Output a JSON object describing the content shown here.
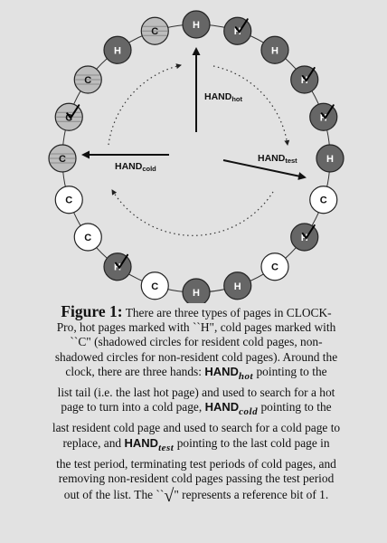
{
  "figure": {
    "labels": {
      "hand_hot_main": "HAND",
      "hand_hot_sub": "hot",
      "hand_cold_main": "HAND",
      "hand_cold_sub": "cold",
      "hand_test_main": "HAND",
      "hand_test_sub": "test"
    },
    "pages": [
      {
        "type": "H",
        "ref": false
      },
      {
        "type": "H",
        "ref": true
      },
      {
        "type": "H",
        "ref": false
      },
      {
        "type": "H",
        "ref": true
      },
      {
        "type": "H",
        "ref": true
      },
      {
        "type": "H",
        "ref": false
      },
      {
        "type": "C",
        "style": "nonresident",
        "ref": false
      },
      {
        "type": "H",
        "ref": true
      },
      {
        "type": "C",
        "style": "nonresident",
        "ref": false
      },
      {
        "type": "H",
        "ref": false
      },
      {
        "type": "H",
        "ref": false
      },
      {
        "type": "C",
        "style": "nonresident",
        "ref": false
      },
      {
        "type": "H",
        "ref": true
      },
      {
        "type": "C",
        "style": "nonresident",
        "ref": false
      },
      {
        "type": "C",
        "style": "nonresident",
        "ref": false
      },
      {
        "type": "C",
        "style": "resident",
        "ref": false
      },
      {
        "type": "C",
        "style": "resident",
        "ref": true
      },
      {
        "type": "C",
        "style": "resident",
        "ref": false
      },
      {
        "type": "H",
        "ref": false
      },
      {
        "type": "C",
        "style": "resident",
        "ref": false
      }
    ],
    "colors": {
      "hot_fill": "#666666",
      "cold_resident_fill": "#bdbdbd",
      "cold_nonresident_fill": "#ffffff",
      "background": "#e2e2e2"
    }
  },
  "caption": {
    "label": "Figure 1:",
    "l1": "There are three types of pages in CLOCK-",
    "l2": "Pro, hot pages marked with ``H\", cold pages marked with",
    "l3": "``C\" (shadowed circles for resident cold pages, non-",
    "l4": "shadowed circles for non-resident cold pages). Around the",
    "l5a": "clock, there are three hands:",
    "hand_hot": "HAND",
    "hot_sub": "hot",
    "l5b": "pointing to the",
    "l6": "list tail (i.e. the last hot page) and used to search for a hot",
    "l7a": "page to turn into a cold page,",
    "hand_cold": "HAND",
    "cold_sub": "cold",
    "l7b": "pointing to the",
    "l8": "last resident cold page and used to search for a cold page to",
    "l9a": "replace, and",
    "hand_test": "HAND",
    "test_sub": "test",
    "l9b": "pointing to the last cold page in",
    "l10": "the test period, terminating test periods of cold pages, and",
    "l11": "removing non-resident cold pages passing the test period",
    "l12a": "out of the list. The ``",
    "check": "√",
    "l12b": "\" represents a reference bit of 1."
  }
}
